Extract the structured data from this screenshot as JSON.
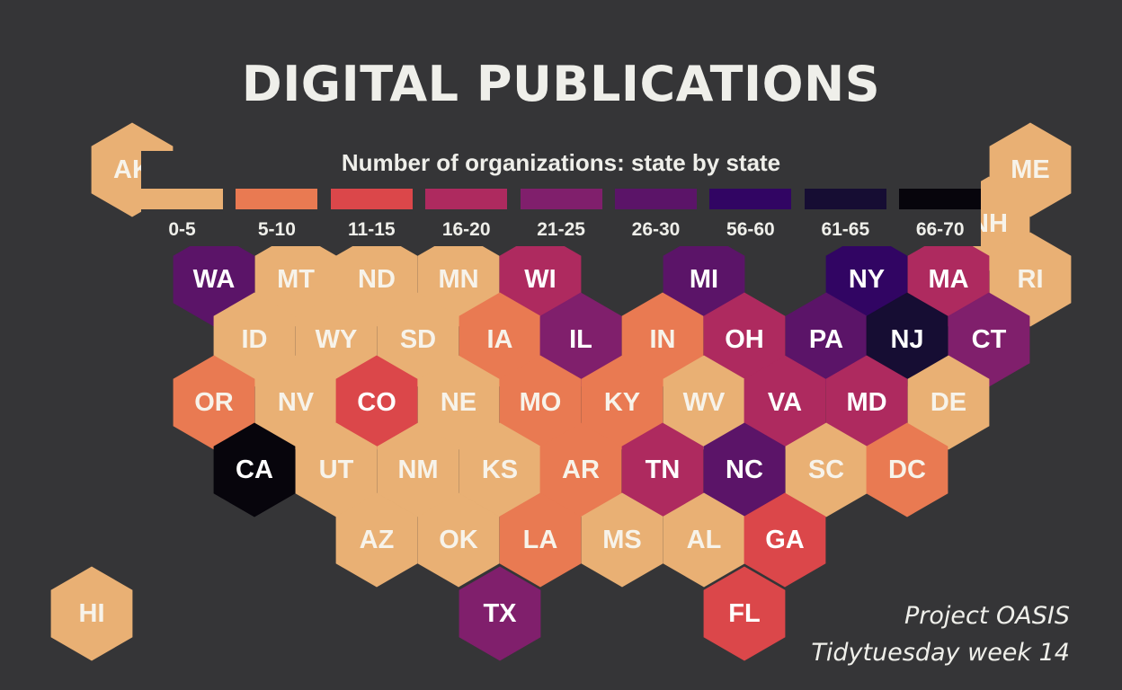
{
  "title": "DIGITAL PUBLICATIONS",
  "legend": {
    "title": "Number of organizations: state by state",
    "bins": [
      {
        "label": "0-5",
        "color": "#e9b074"
      },
      {
        "label": "5-10",
        "color": "#e97a52"
      },
      {
        "label": "11-15",
        "color": "#db474a"
      },
      {
        "label": "16-20",
        "color": "#ae2a5f"
      },
      {
        "label": "21-25",
        "color": "#801f6c"
      },
      {
        "label": "26-30",
        "color": "#5b1468"
      },
      {
        "label": "56-60",
        "color": "#310563"
      },
      {
        "label": "61-65",
        "color": "#160d33"
      },
      {
        "label": "66-70",
        "color": "#07050c"
      }
    ]
  },
  "states": [
    {
      "code": "AK",
      "bin": 0
    },
    {
      "code": "ME",
      "bin": 0
    },
    {
      "code": "NH",
      "bin": 0
    },
    {
      "code": "WA",
      "bin": 5
    },
    {
      "code": "MT",
      "bin": 0
    },
    {
      "code": "ND",
      "bin": 0
    },
    {
      "code": "MN",
      "bin": 0
    },
    {
      "code": "WI",
      "bin": 3
    },
    {
      "code": "MI",
      "bin": 5
    },
    {
      "code": "NY",
      "bin": 6
    },
    {
      "code": "MA",
      "bin": 3
    },
    {
      "code": "RI",
      "bin": 0
    },
    {
      "code": "ID",
      "bin": 0
    },
    {
      "code": "WY",
      "bin": 0
    },
    {
      "code": "SD",
      "bin": 0
    },
    {
      "code": "IA",
      "bin": 1
    },
    {
      "code": "IL",
      "bin": 4
    },
    {
      "code": "IN",
      "bin": 1
    },
    {
      "code": "OH",
      "bin": 3
    },
    {
      "code": "PA",
      "bin": 5
    },
    {
      "code": "NJ",
      "bin": 7
    },
    {
      "code": "CT",
      "bin": 4
    },
    {
      "code": "OR",
      "bin": 1
    },
    {
      "code": "NV",
      "bin": 0
    },
    {
      "code": "CO",
      "bin": 2
    },
    {
      "code": "NE",
      "bin": 0
    },
    {
      "code": "MO",
      "bin": 1
    },
    {
      "code": "KY",
      "bin": 1
    },
    {
      "code": "WV",
      "bin": 0
    },
    {
      "code": "VA",
      "bin": 3
    },
    {
      "code": "MD",
      "bin": 3
    },
    {
      "code": "DE",
      "bin": 0
    },
    {
      "code": "CA",
      "bin": 8
    },
    {
      "code": "UT",
      "bin": 0
    },
    {
      "code": "NM",
      "bin": 0
    },
    {
      "code": "KS",
      "bin": 0
    },
    {
      "code": "AR",
      "bin": 1
    },
    {
      "code": "TN",
      "bin": 3
    },
    {
      "code": "NC",
      "bin": 5
    },
    {
      "code": "SC",
      "bin": 0
    },
    {
      "code": "DC",
      "bin": 1
    },
    {
      "code": "AZ",
      "bin": 0
    },
    {
      "code": "OK",
      "bin": 0
    },
    {
      "code": "LA",
      "bin": 1
    },
    {
      "code": "MS",
      "bin": 0
    },
    {
      "code": "AL",
      "bin": 0
    },
    {
      "code": "GA",
      "bin": 2
    },
    {
      "code": "HI",
      "bin": 0
    },
    {
      "code": "TX",
      "bin": 4
    },
    {
      "code": "FL",
      "bin": 2
    }
  ],
  "credits": [
    "Project OASIS",
    "Tidytuesday week 14"
  ]
}
